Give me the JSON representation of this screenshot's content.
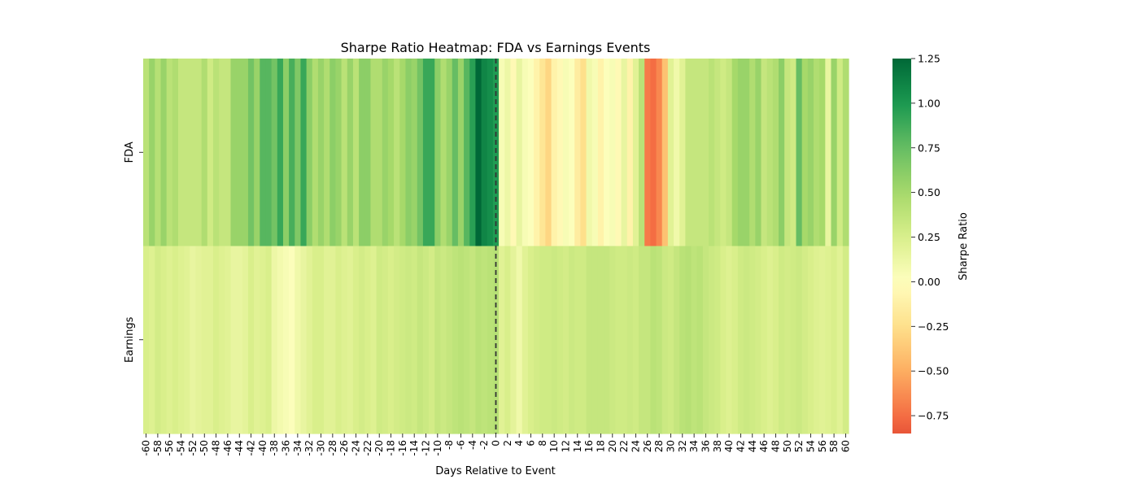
{
  "chart_data": {
    "type": "heatmap",
    "title": "Sharpe Ratio Heatmap: FDA vs Earnings Events",
    "xlabel": "Days Relative to Event",
    "ylabel": "",
    "rows": [
      "FDA",
      "Earnings"
    ],
    "x_start": -60,
    "x_end": 60,
    "x_tick_labels": [
      "-60",
      "-58",
      "-56",
      "-54",
      "-52",
      "-50",
      "-48",
      "-46",
      "-44",
      "-42",
      "-40",
      "-38",
      "-36",
      "-34",
      "-32",
      "-30",
      "-28",
      "-26",
      "-24",
      "-22",
      "-20",
      "-18",
      "-16",
      "-14",
      "-12",
      "-10",
      "-8",
      "-6",
      "-4",
      "-2",
      "0",
      "2",
      "4",
      "6",
      "8",
      "10",
      "12",
      "14",
      "16",
      "18",
      "20",
      "22",
      "24",
      "26",
      "28",
      "30",
      "32",
      "34",
      "36",
      "38",
      "40",
      "42",
      "44",
      "46",
      "48",
      "50",
      "52",
      "54",
      "56",
      "58",
      "60"
    ],
    "values": [
      [
        0.4,
        0.55,
        0.42,
        0.55,
        0.4,
        0.45,
        0.35,
        0.35,
        0.35,
        0.35,
        0.45,
        0.3,
        0.4,
        0.35,
        0.35,
        0.55,
        0.55,
        0.55,
        0.7,
        0.55,
        0.8,
        0.8,
        0.7,
        0.9,
        0.6,
        0.85,
        0.65,
        0.9,
        0.6,
        0.45,
        0.55,
        0.45,
        0.6,
        0.55,
        0.4,
        0.55,
        0.4,
        0.6,
        0.6,
        0.45,
        0.45,
        0.55,
        0.5,
        0.4,
        0.5,
        0.6,
        0.55,
        0.7,
        0.9,
        0.9,
        0.6,
        0.45,
        0.55,
        0.75,
        0.55,
        0.8,
        0.95,
        1.25,
        1.1,
        1.05,
        0.98,
        0.05,
        0.12,
        -0.05,
        0.15,
        0.05,
        0.02,
        -0.1,
        -0.2,
        -0.3,
        -0.1,
        -0.05,
        0.05,
        0.02,
        -0.15,
        -0.25,
        0.1,
        0.05,
        -0.1,
        0.02,
        0.05,
        -0.05,
        0.15,
        -0.1,
        0.2,
        0.4,
        -0.7,
        -0.75,
        -0.65,
        -0.4,
        0.2,
        0.1,
        0.2,
        0.35,
        0.35,
        0.35,
        0.35,
        0.4,
        0.35,
        0.3,
        0.35,
        0.5,
        0.55,
        0.55,
        0.45,
        0.55,
        0.35,
        0.4,
        0.45,
        0.6,
        0.35,
        0.3,
        0.75,
        0.5,
        0.55,
        0.45,
        0.5,
        0.15,
        0.55,
        0.3,
        0.45
      ],
      [
        0.25,
        0.22,
        0.28,
        0.25,
        0.22,
        0.25,
        0.22,
        0.2,
        0.15,
        0.18,
        0.2,
        0.2,
        0.25,
        0.22,
        0.2,
        0.15,
        0.15,
        0.18,
        0.25,
        0.2,
        0.22,
        0.25,
        0.12,
        0.08,
        0.05,
        0.02,
        0.1,
        0.15,
        0.2,
        0.25,
        0.25,
        0.2,
        0.2,
        0.25,
        0.22,
        0.2,
        0.25,
        0.28,
        0.25,
        0.22,
        0.3,
        0.28,
        0.25,
        0.28,
        0.3,
        0.32,
        0.3,
        0.35,
        0.32,
        0.28,
        0.35,
        0.32,
        0.35,
        0.38,
        0.4,
        0.38,
        0.35,
        0.4,
        0.38,
        0.4,
        0.42,
        0.2,
        0.25,
        0.18,
        0.1,
        0.2,
        0.25,
        0.28,
        0.3,
        0.3,
        0.32,
        0.3,
        0.28,
        0.32,
        0.3,
        0.3,
        0.35,
        0.35,
        0.35,
        0.35,
        0.32,
        0.3,
        0.3,
        0.32,
        0.3,
        0.35,
        0.35,
        0.4,
        0.38,
        0.32,
        0.3,
        0.35,
        0.4,
        0.42,
        0.38,
        0.4,
        0.35,
        0.32,
        0.3,
        0.25,
        0.22,
        0.25,
        0.3,
        0.32,
        0.3,
        0.28,
        0.25,
        0.22,
        0.25,
        0.3,
        0.28,
        0.3,
        0.32,
        0.28,
        0.25,
        0.22,
        0.2,
        0.22,
        0.25,
        0.2,
        0.28
      ]
    ],
    "colorbar": {
      "label": "Sharpe Ratio",
      "vmin": -0.85,
      "vmax": 1.25,
      "ticks": [
        1.25,
        1.0,
        0.75,
        0.5,
        0.25,
        0.0,
        -0.25,
        -0.5,
        -0.75
      ],
      "tick_labels": [
        "1.25",
        "1.00",
        "0.75",
        "0.50",
        "0.25",
        "0.00",
        "−0.25",
        "−0.50",
        "−0.75"
      ],
      "colormap": "RdYlGn",
      "center": 0.0
    },
    "event_marker": {
      "x": 0,
      "style": "dashed",
      "color": "#333333"
    },
    "grid": false
  }
}
